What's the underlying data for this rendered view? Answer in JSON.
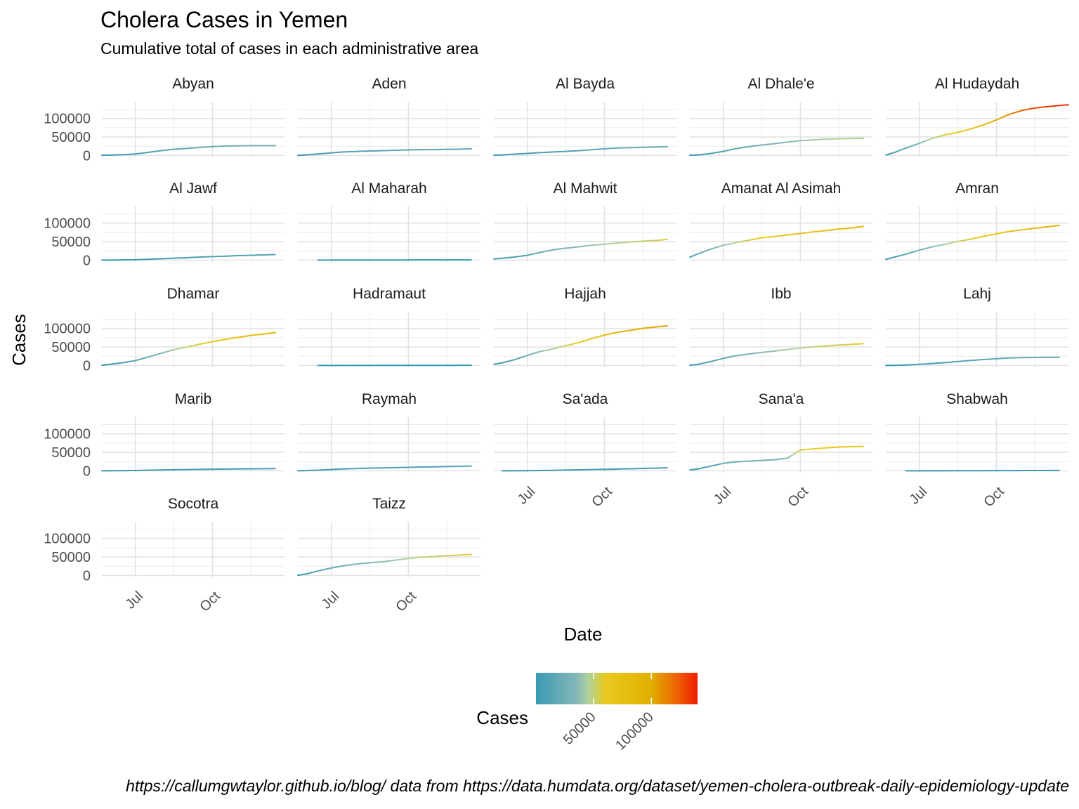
{
  "chart_data": {
    "type": "line",
    "title": "Cholera Cases in Yemen",
    "subtitle": "Cumulative total of cases in each administrative area",
    "caption": "https://callumgwtaylor.github.io/blog/ data from https://data.humdata.org/dataset/yemen-cholera-outbreak-daily-epidemiology-update",
    "xlabel": "Date",
    "ylabel": "Cases",
    "x_ticks": [
      "Jul",
      "Oct"
    ],
    "x_tick_dates": [
      "2017-07-01",
      "2017-10-01"
    ],
    "xlim": [
      "2017-05-22",
      "2017-12-26"
    ],
    "y_ticks": [
      0,
      50000,
      100000
    ],
    "ylim": [
      -5000,
      145000
    ],
    "grid": true,
    "legend": {
      "title": "Cases",
      "placement": "bottom",
      "ticks": [
        50000,
        100000
      ],
      "range": [
        0,
        140000
      ],
      "colors": [
        "#3a9ab2",
        "#85b7b9",
        "#add39f",
        "#e9ca20",
        "#e1af00",
        "#ef5703",
        "#f11b00"
      ],
      "color_stops": [
        0,
        35000,
        45000,
        60000,
        100000,
        125000,
        140000
      ]
    },
    "x": [
      "2017-05-22",
      "2017-06-01",
      "2017-06-15",
      "2017-07-01",
      "2017-07-15",
      "2017-08-01",
      "2017-08-15",
      "2017-09-01",
      "2017-09-15",
      "2017-10-01",
      "2017-10-15",
      "2017-11-01",
      "2017-11-15",
      "2017-12-01",
      "2017-12-15",
      "2017-12-26"
    ],
    "series": [
      {
        "name": "Abyan",
        "values": [
          500,
          1000,
          2000,
          4000,
          8000,
          13000,
          16500,
          19000,
          21500,
          24000,
          25500,
          26000,
          26500,
          26500,
          26600,
          null
        ]
      },
      {
        "name": "Aden",
        "values": [
          300,
          1500,
          4000,
          7000,
          9500,
          11000,
          12000,
          13000,
          14000,
          15000,
          15500,
          16000,
          16500,
          17000,
          18000,
          null
        ]
      },
      {
        "name": "Al Bayda",
        "values": [
          500,
          1500,
          3500,
          5500,
          7500,
          9500,
          11000,
          13000,
          15500,
          18000,
          20000,
          21000,
          22000,
          23000,
          24000,
          null
        ]
      },
      {
        "name": "Al Dhale'e",
        "values": [
          500,
          1500,
          5000,
          11000,
          18000,
          24000,
          28000,
          32000,
          36000,
          40000,
          42000,
          44000,
          45000,
          46000,
          46500,
          null
        ]
      },
      {
        "name": "Al Hudaydah",
        "values": [
          1000,
          8000,
          20000,
          33000,
          45000,
          56000,
          62000,
          72000,
          82000,
          96000,
          110000,
          122000,
          128000,
          132000,
          135000,
          137000
        ]
      },
      {
        "name": "Al Jawf",
        "values": [
          0,
          0,
          500,
          1000,
          2000,
          3500,
          5000,
          6500,
          8000,
          9500,
          10500,
          12000,
          13000,
          14000,
          15000,
          null
        ]
      },
      {
        "name": "Al Maharah",
        "values": [
          null,
          null,
          0,
          100,
          150,
          200,
          250,
          300,
          300,
          350,
          400,
          400,
          450,
          500,
          500,
          null
        ]
      },
      {
        "name": "Al Mahwit",
        "values": [
          3000,
          5000,
          8000,
          13000,
          20000,
          28000,
          32000,
          36000,
          40000,
          43000,
          46000,
          49000,
          51000,
          53000,
          56000,
          null
        ]
      },
      {
        "name": "Amanat Al Asimah",
        "values": [
          8000,
          17000,
          29000,
          40000,
          47000,
          54000,
          60000,
          64000,
          68000,
          72000,
          76000,
          80000,
          84000,
          87000,
          91000,
          null
        ]
      },
      {
        "name": "Amran",
        "values": [
          2000,
          8000,
          16000,
          27000,
          35000,
          43000,
          50000,
          57000,
          64000,
          71000,
          77000,
          82000,
          86000,
          90000,
          94000,
          null
        ]
      },
      {
        "name": "Dhamar",
        "values": [
          500,
          3000,
          7000,
          13000,
          22000,
          33000,
          42000,
          50000,
          57000,
          64000,
          70000,
          76000,
          81000,
          85000,
          89000,
          null
        ]
      },
      {
        "name": "Hadramaut",
        "values": [
          null,
          null,
          0,
          0,
          50,
          100,
          100,
          150,
          200,
          200,
          250,
          300,
          300,
          350,
          400,
          null
        ]
      },
      {
        "name": "Hajjah",
        "values": [
          3000,
          7000,
          15000,
          27000,
          37000,
          45000,
          53000,
          62000,
          72000,
          82000,
          89000,
          95000,
          100000,
          104000,
          107000,
          null
        ]
      },
      {
        "name": "Ibb",
        "values": [
          500,
          3000,
          10000,
          19000,
          26000,
          31000,
          35000,
          39000,
          43000,
          47000,
          50000,
          53000,
          55000,
          57000,
          59000,
          null
        ]
      },
      {
        "name": "Lahj",
        "values": [
          0,
          300,
          1000,
          3000,
          5000,
          7500,
          10500,
          13500,
          16000,
          18000,
          20000,
          21000,
          21500,
          22000,
          22000,
          null
        ]
      },
      {
        "name": "Marib",
        "values": [
          0,
          100,
          300,
          800,
          1500,
          2200,
          2800,
          3300,
          3800,
          4200,
          4600,
          5000,
          5300,
          5600,
          6000,
          null
        ]
      },
      {
        "name": "Raymah",
        "values": [
          0,
          500,
          1500,
          3500,
          5000,
          6200,
          7000,
          7800,
          8500,
          9300,
          10000,
          10700,
          11300,
          12000,
          13000,
          null
        ]
      },
      {
        "name": "Sa'ada",
        "values": [
          null,
          0,
          100,
          300,
          700,
          1200,
          1800,
          2500,
          3200,
          3900,
          4600,
          5400,
          6300,
          7200,
          8000,
          null
        ]
      },
      {
        "name": "Sana'a",
        "values": [
          2000,
          5000,
          12000,
          20000,
          24000,
          26000,
          28000,
          30000,
          34000,
          56000,
          59000,
          62000,
          64000,
          65000,
          66000,
          null
        ]
      },
      {
        "name": "Shabwah",
        "values": [
          null,
          null,
          0,
          0,
          50,
          100,
          150,
          200,
          300,
          400,
          500,
          600,
          700,
          800,
          900,
          null
        ]
      },
      {
        "name": "Socotra",
        "values": [
          null,
          null,
          null,
          null,
          null,
          null,
          null,
          null,
          null,
          null,
          null,
          null,
          null,
          null,
          null,
          null
        ]
      },
      {
        "name": "Taizz",
        "values": [
          500,
          4000,
          12000,
          20000,
          26000,
          31000,
          34000,
          37000,
          41000,
          46000,
          49000,
          51000,
          53000,
          55000,
          57000,
          null
        ]
      }
    ]
  }
}
